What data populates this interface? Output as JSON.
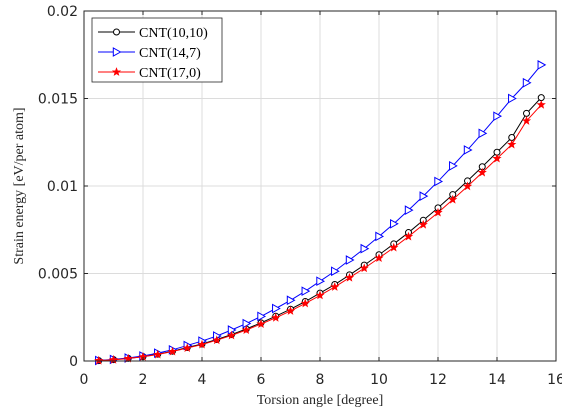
{
  "chart_data": {
    "type": "line",
    "title": "",
    "xlabel": "Torsion angle [degree]",
    "ylabel": "Strain energy [eV/per atom]",
    "xlim": [
      0,
      16
    ],
    "ylim": [
      0,
      0.02
    ],
    "xticks": [
      0,
      2,
      4,
      6,
      8,
      10,
      12,
      14,
      16
    ],
    "xtick_labels": [
      "0",
      "2",
      "4",
      "6",
      "8",
      "10",
      "12",
      "14",
      "16"
    ],
    "yticks": [
      0,
      0.005,
      0.01,
      0.015,
      0.02
    ],
    "ytick_labels": [
      "0",
      "0.005",
      "0.01",
      "0.015",
      "0.02"
    ],
    "grid": true,
    "legend_position": "top-left",
    "x": [
      0.5,
      1.0,
      1.5,
      2.0,
      2.5,
      3.0,
      3.5,
      4.0,
      4.5,
      5.0,
      5.5,
      6.0,
      6.5,
      7.0,
      7.5,
      8.0,
      8.5,
      9.0,
      9.5,
      10.0,
      10.5,
      11.0,
      11.5,
      12.0,
      12.5,
      13.0,
      13.5,
      14.0,
      14.5,
      15.0,
      15.5
    ],
    "series": [
      {
        "name": "CNT(10,10)",
        "color": "#000000",
        "marker": "circle",
        "values": [
          2e-05,
          8e-05,
          0.00015,
          0.00025,
          0.00039,
          0.00056,
          0.00077,
          0.00097,
          0.00123,
          0.00151,
          0.00183,
          0.00218,
          0.00256,
          0.00296,
          0.0034,
          0.00388,
          0.00437,
          0.00492,
          0.00548,
          0.00607,
          0.00669,
          0.00734,
          0.00804,
          0.00875,
          0.00951,
          0.01029,
          0.0111,
          0.01193,
          0.01277,
          0.01415,
          0.01505
        ]
      },
      {
        "name": "CNT(14,7)",
        "color": "#0000ff",
        "marker": "triangle-right",
        "values": [
          3e-05,
          9e-05,
          0.00017,
          0.00029,
          0.00045,
          0.00064,
          0.00089,
          0.00114,
          0.00143,
          0.00177,
          0.00214,
          0.00255,
          0.003,
          0.00347,
          0.00399,
          0.00456,
          0.00513,
          0.00577,
          0.00642,
          0.00712,
          0.00784,
          0.00862,
          0.00942,
          0.01026,
          0.01115,
          0.01206,
          0.01301,
          0.01399,
          0.015,
          0.0159,
          0.01692
        ]
      },
      {
        "name": "CNT(17,0)",
        "color": "#ff0000",
        "marker": "star",
        "values": [
          2e-05,
          7e-05,
          0.00014,
          0.00024,
          0.00037,
          0.00054,
          0.00074,
          0.00094,
          0.00119,
          0.00146,
          0.00177,
          0.00211,
          0.00247,
          0.00286,
          0.00329,
          0.00375,
          0.00423,
          0.00476,
          0.0053,
          0.00588,
          0.00648,
          0.00711,
          0.00779,
          0.00848,
          0.00922,
          0.00998,
          0.01077,
          0.01157,
          0.01237,
          0.01372,
          0.01464
        ]
      }
    ]
  }
}
